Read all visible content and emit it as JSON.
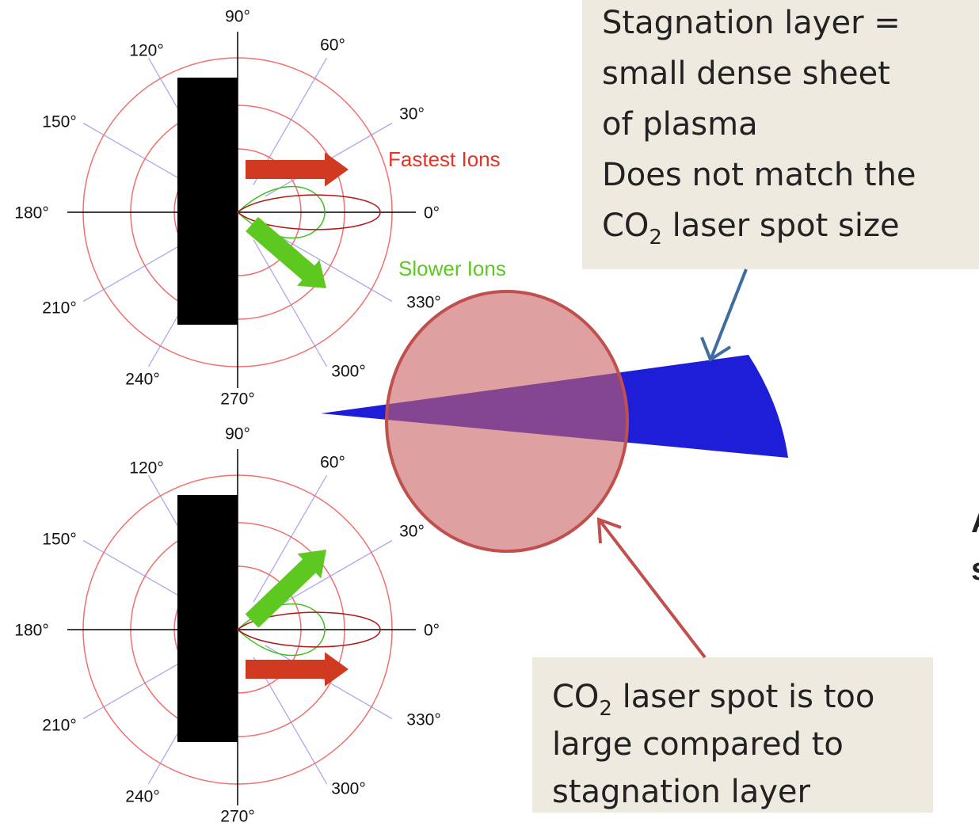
{
  "polar_plots": [
    {
      "angle_labels": [
        "90°",
        "60°",
        "120°",
        "30°",
        "150°",
        "180°",
        "0°",
        "210°",
        "330°",
        "240°",
        "300°",
        "270°"
      ]
    },
    {
      "angle_labels": [
        "90°",
        "60°",
        "120°",
        "30°",
        "150°",
        "180°",
        "0°",
        "210°",
        "330°",
        "240°",
        "300°",
        "270°"
      ]
    }
  ],
  "ion_labels": {
    "fastest": "Fastest Ions",
    "slower": "Slower Ions"
  },
  "callouts": [
    {
      "lines": [
        [
          {
            "text": "Stagnation layer ="
          }
        ],
        [
          {
            "text": "small dense sheet"
          }
        ],
        [
          {
            "text": "of plasma"
          }
        ],
        [
          {
            "text": "Does not match the"
          }
        ],
        [
          {
            "text": "CO"
          },
          {
            "text": "2",
            "sub": true
          },
          {
            "text": " laser spot size"
          }
        ]
      ]
    },
    {
      "lines": [
        [
          {
            "text": "CO"
          },
          {
            "text": "2",
            "sub": true
          },
          {
            "text": " laser spot is too"
          }
        ],
        [
          {
            "text": "large compared to"
          }
        ],
        [
          {
            "text": "stagnation layer"
          }
        ]
      ]
    }
  ],
  "edge_fragments": [
    "A",
    "s"
  ]
}
